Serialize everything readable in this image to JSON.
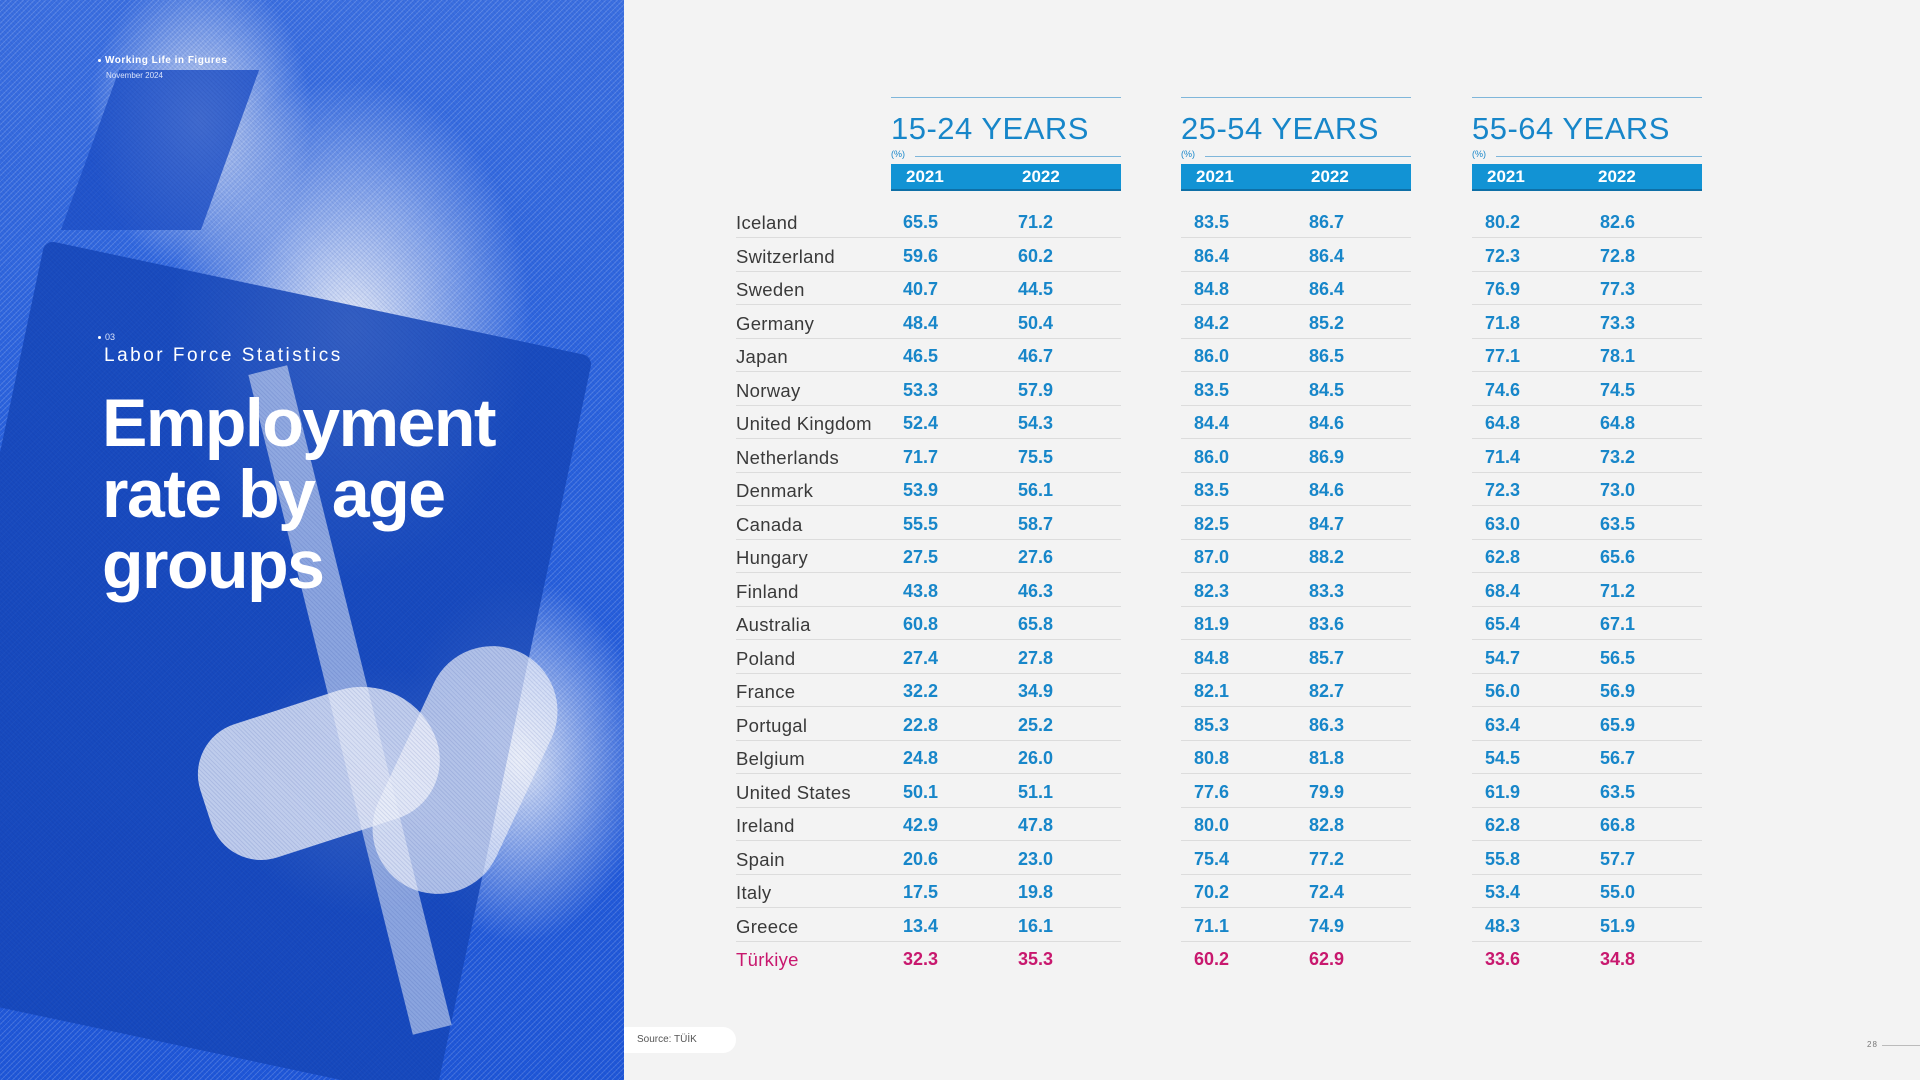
{
  "header": {
    "kicker": "Working Life in Figures",
    "date": "November 2024"
  },
  "section": {
    "number": "03",
    "title": "Labor Force Statistics"
  },
  "title_lines": [
    "Employment",
    "rate by age",
    "groups"
  ],
  "groups": [
    {
      "title": "15-24 YEARS",
      "unit": "(%)",
      "years": [
        "2021",
        "2022"
      ]
    },
    {
      "title": "25-54 YEARS",
      "unit": "(%)",
      "years": [
        "2021",
        "2022"
      ]
    },
    {
      "title": "55-64 YEARS",
      "unit": "(%)",
      "years": [
        "2021",
        "2022"
      ]
    }
  ],
  "rows": [
    {
      "country": "Iceland",
      "values": [
        "65.5",
        "71.2",
        "83.5",
        "86.7",
        "80.2",
        "82.6"
      ]
    },
    {
      "country": "Switzerland",
      "values": [
        "59.6",
        "60.2",
        "86.4",
        "86.4",
        "72.3",
        "72.8"
      ]
    },
    {
      "country": "Sweden",
      "values": [
        "40.7",
        "44.5",
        "84.8",
        "86.4",
        "76.9",
        "77.3"
      ]
    },
    {
      "country": "Germany",
      "values": [
        "48.4",
        "50.4",
        "84.2",
        "85.2",
        "71.8",
        "73.3"
      ]
    },
    {
      "country": "Japan",
      "values": [
        "46.5",
        "46.7",
        "86.0",
        "86.5",
        "77.1",
        "78.1"
      ]
    },
    {
      "country": "Norway",
      "values": [
        "53.3",
        "57.9",
        "83.5",
        "84.5",
        "74.6",
        "74.5"
      ]
    },
    {
      "country": "United Kingdom",
      "values": [
        "52.4",
        "54.3",
        "84.4",
        "84.6",
        "64.8",
        "64.8"
      ]
    },
    {
      "country": "Netherlands",
      "values": [
        "71.7",
        "75.5",
        "86.0",
        "86.9",
        "71.4",
        "73.2"
      ]
    },
    {
      "country": "Denmark",
      "values": [
        "53.9",
        "56.1",
        "83.5",
        "84.6",
        "72.3",
        "73.0"
      ]
    },
    {
      "country": "Canada",
      "values": [
        "55.5",
        "58.7",
        "82.5",
        "84.7",
        "63.0",
        "63.5"
      ]
    },
    {
      "country": "Hungary",
      "values": [
        "27.5",
        "27.6",
        "87.0",
        "88.2",
        "62.8",
        "65.6"
      ]
    },
    {
      "country": "Finland",
      "values": [
        "43.8",
        "46.3",
        "82.3",
        "83.3",
        "68.4",
        "71.2"
      ]
    },
    {
      "country": "Australia",
      "values": [
        "60.8",
        "65.8",
        "81.9",
        "83.6",
        "65.4",
        "67.1"
      ]
    },
    {
      "country": "Poland",
      "values": [
        "27.4",
        "27.8",
        "84.8",
        "85.7",
        "54.7",
        "56.5"
      ]
    },
    {
      "country": "France",
      "values": [
        "32.2",
        "34.9",
        "82.1",
        "82.7",
        "56.0",
        "56.9"
      ]
    },
    {
      "country": "Portugal",
      "values": [
        "22.8",
        "25.2",
        "85.3",
        "86.3",
        "63.4",
        "65.9"
      ]
    },
    {
      "country": "Belgium",
      "values": [
        "24.8",
        "26.0",
        "80.8",
        "81.8",
        "54.5",
        "56.7"
      ]
    },
    {
      "country": "United States",
      "values": [
        "50.1",
        "51.1",
        "77.6",
        "79.9",
        "61.9",
        "63.5"
      ]
    },
    {
      "country": "Ireland",
      "values": [
        "42.9",
        "47.8",
        "80.0",
        "82.8",
        "62.8",
        "66.8"
      ]
    },
    {
      "country": "Spain",
      "values": [
        "20.6",
        "23.0",
        "75.4",
        "77.2",
        "55.8",
        "57.7"
      ]
    },
    {
      "country": "Italy",
      "values": [
        "17.5",
        "19.8",
        "70.2",
        "72.4",
        "53.4",
        "55.0"
      ]
    },
    {
      "country": "Greece",
      "values": [
        "13.4",
        "16.1",
        "71.1",
        "74.9",
        "48.3",
        "51.9"
      ]
    },
    {
      "country": "Türkiye",
      "values": [
        "32.3",
        "35.3",
        "60.2",
        "62.9",
        "33.6",
        "34.8"
      ],
      "highlight": true
    }
  ],
  "colors": {
    "accent": "#1786c9",
    "header_bar": "#1293d4",
    "highlight": "#c8186e",
    "hero_blue": "#2a62dd"
  },
  "source": "Source: TÜİK",
  "page_number": "28"
}
